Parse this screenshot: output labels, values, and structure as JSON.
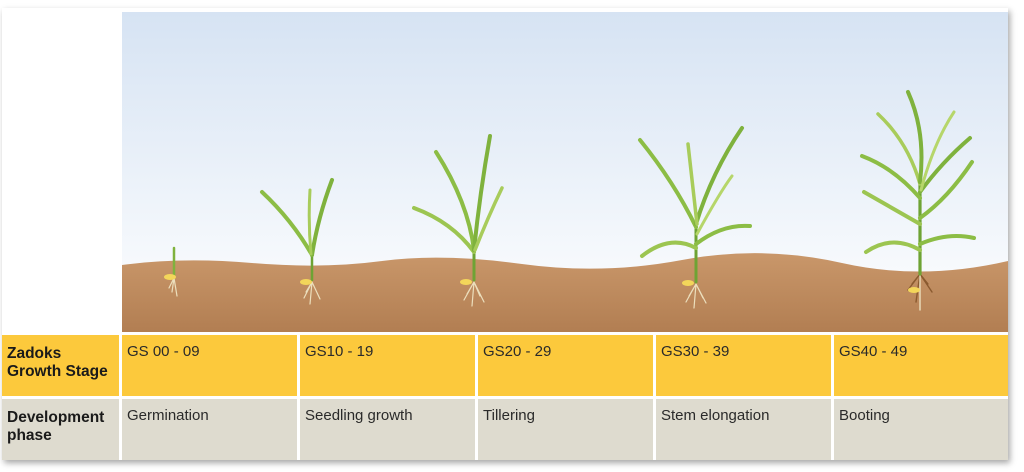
{
  "header_label": {
    "stage": "Zadoks Growth Stage",
    "phase": "Development phase"
  },
  "stages": [
    {
      "code": "GS 00 - 09",
      "phase": "Germination"
    },
    {
      "code": "GS10 - 19",
      "phase": "Seedling growth"
    },
    {
      "code": "GS20 - 29",
      "phase": "Tillering"
    },
    {
      "code": "GS30 - 39",
      "phase": "Stem elongation"
    },
    {
      "code": "GS40 - 49",
      "phase": "Booting"
    }
  ],
  "colors": {
    "sky_top": "#d8e4f3",
    "sky_bottom": "#ffffff",
    "soil": "#c08c5f",
    "leaf": "#7fb23d",
    "leaf_light": "#b6d66a",
    "seed": "#f3d65a",
    "root": "#e8dcb8",
    "stage_row": "#fcc93c",
    "phase_row": "#dedbcf"
  }
}
